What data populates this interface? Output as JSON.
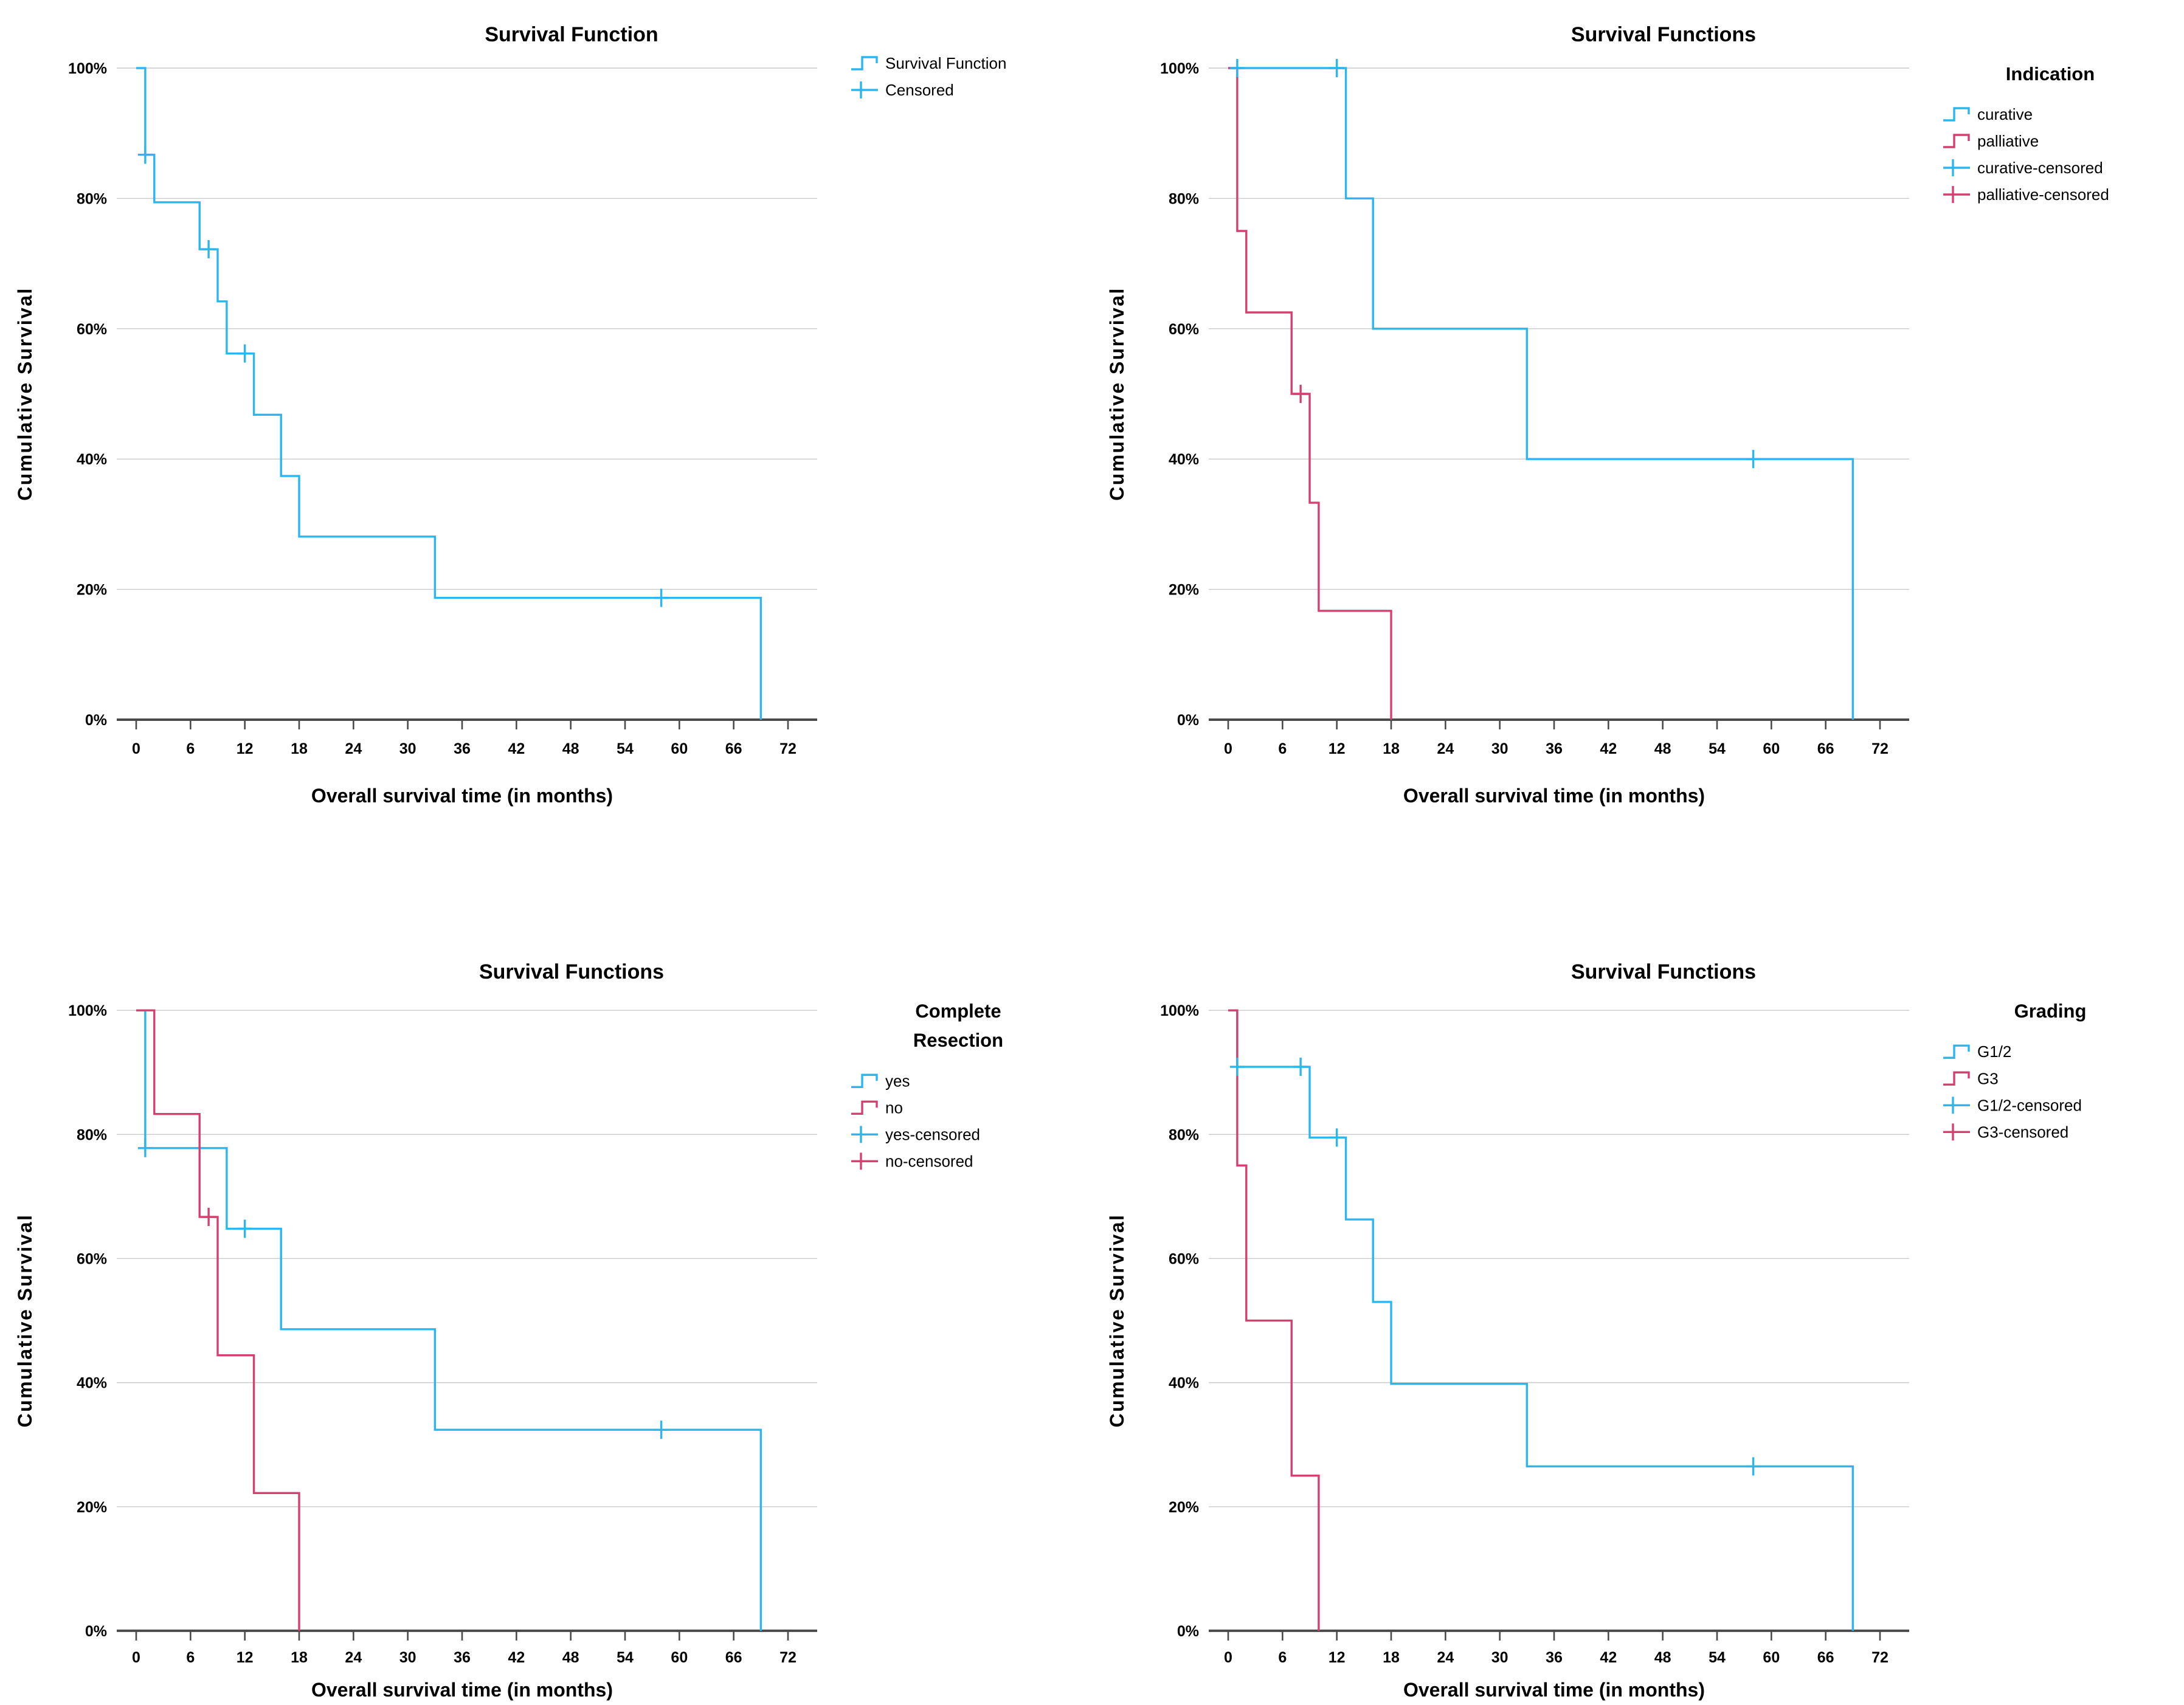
{
  "page": {
    "background": "#ffffff",
    "description": "Four SPSS-style Kaplan-Meier survival plots arranged in a 2x2 grid"
  },
  "colors": {
    "series_blue": "#2bb6ef",
    "series_pink": "#d6406e",
    "grid": "#c9c9c9",
    "axis": "#4a4a4a",
    "text": "#000000"
  },
  "chart_data": [
    {
      "type": "line",
      "subtype": "kaplan_meier_step",
      "position": "top-left",
      "layout_variant": "top",
      "title": "Survival Function",
      "xlabel": "Overall survival time (in months)",
      "ylabel": "Cumulative Survival",
      "x_range": [
        0,
        72
      ],
      "y_range": [
        0,
        100
      ],
      "x_ticks": [
        0,
        6,
        12,
        18,
        24,
        30,
        36,
        42,
        48,
        54,
        60,
        66,
        72
      ],
      "y_ticks": [
        0,
        20,
        40,
        60,
        80,
        100
      ],
      "y_tick_labels": [
        "0%",
        "20%",
        "40%",
        "60%",
        "80%",
        "100%"
      ],
      "grid": "horizontal",
      "legend_position": "right",
      "legend": {
        "title_lines": [],
        "entries": [
          {
            "label": "Survival Function",
            "glyph": "step",
            "color": "blue"
          },
          {
            "label": "Censored",
            "glyph": "plus",
            "color": "blue"
          }
        ]
      },
      "series": [
        {
          "name": "Survival Function",
          "color": "blue",
          "points": [
            [
              0,
              100
            ],
            [
              1,
              86.7
            ],
            [
              2,
              79.4
            ],
            [
              7,
              72.2
            ],
            [
              9,
              64.2
            ],
            [
              10,
              56.2
            ],
            [
              13,
              46.8
            ],
            [
              16,
              37.4
            ],
            [
              18,
              28.1
            ],
            [
              33,
              18.7
            ],
            [
              69,
              0
            ]
          ],
          "censored": [
            [
              1,
              86.7
            ],
            [
              8,
              72.2
            ],
            [
              12,
              56.2
            ],
            [
              58,
              18.7
            ]
          ]
        }
      ]
    },
    {
      "type": "line",
      "subtype": "kaplan_meier_step",
      "position": "top-right",
      "layout_variant": "top",
      "title": "Survival Functions",
      "xlabel": "Overall survival time (in months)",
      "ylabel": "Cumulative Survival",
      "x_range": [
        0,
        72
      ],
      "y_range": [
        0,
        100
      ],
      "x_ticks": [
        0,
        6,
        12,
        18,
        24,
        30,
        36,
        42,
        48,
        54,
        60,
        66,
        72
      ],
      "y_ticks": [
        0,
        20,
        40,
        60,
        80,
        100
      ],
      "y_tick_labels": [
        "0%",
        "20%",
        "40%",
        "60%",
        "80%",
        "100%"
      ],
      "grid": "horizontal",
      "legend_position": "right",
      "legend": {
        "title_lines": [
          "Indication"
        ],
        "entries": [
          {
            "label": "curative",
            "glyph": "step",
            "color": "blue"
          },
          {
            "label": "palliative",
            "glyph": "step",
            "color": "pink"
          },
          {
            "label": "curative-censored",
            "glyph": "plus",
            "color": "blue"
          },
          {
            "label": "palliative-censored",
            "glyph": "plus",
            "color": "pink"
          }
        ]
      },
      "series": [
        {
          "name": "curative",
          "color": "blue",
          "points": [
            [
              0,
              100
            ],
            [
              13,
              80
            ],
            [
              16,
              60
            ],
            [
              33,
              40
            ],
            [
              69,
              0
            ]
          ],
          "censored": [
            [
              1,
              100
            ],
            [
              12,
              100
            ],
            [
              58,
              40
            ]
          ]
        },
        {
          "name": "palliative",
          "color": "pink",
          "points": [
            [
              0,
              100
            ],
            [
              1,
              75
            ],
            [
              2,
              62.5
            ],
            [
              7,
              50
            ],
            [
              9,
              33.3
            ],
            [
              10,
              16.7
            ],
            [
              18,
              0
            ]
          ],
          "censored": [
            [
              8,
              50
            ]
          ]
        }
      ]
    },
    {
      "type": "line",
      "subtype": "kaplan_meier_step",
      "position": "bottom-left",
      "layout_variant": "bottom",
      "title": "Survival Functions",
      "xlabel": "Overall survival time (in months)",
      "ylabel": "Cumulative Survival",
      "x_range": [
        0,
        72
      ],
      "y_range": [
        0,
        100
      ],
      "x_ticks": [
        0,
        6,
        12,
        18,
        24,
        30,
        36,
        42,
        48,
        54,
        60,
        66,
        72
      ],
      "y_ticks": [
        0,
        20,
        40,
        60,
        80,
        100
      ],
      "y_tick_labels": [
        "0%",
        "20%",
        "40%",
        "60%",
        "80%",
        "100%"
      ],
      "grid": "horizontal",
      "legend_position": "right",
      "legend": {
        "title_lines": [
          "Complete",
          "Resection"
        ],
        "entries": [
          {
            "label": "yes",
            "glyph": "step",
            "color": "blue"
          },
          {
            "label": "no",
            "glyph": "step",
            "color": "pink"
          },
          {
            "label": "yes-censored",
            "glyph": "plus",
            "color": "blue"
          },
          {
            "label": "no-censored",
            "glyph": "plus",
            "color": "pink"
          }
        ]
      },
      "series": [
        {
          "name": "yes",
          "color": "blue",
          "points": [
            [
              0,
              100
            ],
            [
              1,
              77.8
            ],
            [
              10,
              64.8
            ],
            [
              16,
              48.6
            ],
            [
              33,
              32.4
            ],
            [
              69,
              0
            ]
          ],
          "censored": [
            [
              1,
              77.8
            ],
            [
              12,
              64.8
            ],
            [
              58,
              32.4
            ]
          ]
        },
        {
          "name": "no",
          "color": "pink",
          "points": [
            [
              0,
              100
            ],
            [
              2,
              83.3
            ],
            [
              7,
              66.7
            ],
            [
              9,
              44.4
            ],
            [
              13,
              22.2
            ],
            [
              18,
              0
            ]
          ],
          "censored": [
            [
              8,
              66.7
            ]
          ]
        }
      ]
    },
    {
      "type": "line",
      "subtype": "kaplan_meier_step",
      "position": "bottom-right",
      "layout_variant": "bottom",
      "title": "Survival Functions",
      "xlabel": "Overall survival time (in months)",
      "ylabel": "Cumulative Survival",
      "x_range": [
        0,
        72
      ],
      "y_range": [
        0,
        100
      ],
      "x_ticks": [
        0,
        6,
        12,
        18,
        24,
        30,
        36,
        42,
        48,
        54,
        60,
        66,
        72
      ],
      "y_ticks": [
        0,
        20,
        40,
        60,
        80,
        100
      ],
      "y_tick_labels": [
        "0%",
        "20%",
        "40%",
        "60%",
        "80%",
        "100%"
      ],
      "grid": "horizontal",
      "legend_position": "right",
      "legend": {
        "title_lines": [
          "Grading"
        ],
        "entries": [
          {
            "label": "G1/2",
            "glyph": "step",
            "color": "blue"
          },
          {
            "label": "G3",
            "glyph": "step",
            "color": "pink"
          },
          {
            "label": "G1/2-censored",
            "glyph": "plus",
            "color": "blue"
          },
          {
            "label": "G3-censored",
            "glyph": "plus",
            "color": "pink"
          }
        ]
      },
      "series": [
        {
          "name": "G1/2",
          "color": "blue",
          "points": [
            [
              0,
              100
            ],
            [
              1,
              90.9
            ],
            [
              9,
              79.5
            ],
            [
              13,
              66.3
            ],
            [
              16,
              53
            ],
            [
              18,
              39.8
            ],
            [
              33,
              26.5
            ],
            [
              69,
              0
            ]
          ],
          "censored": [
            [
              1,
              90.9
            ],
            [
              8,
              90.9
            ],
            [
              12,
              79.5
            ],
            [
              58,
              26.5
            ]
          ]
        },
        {
          "name": "G3",
          "color": "pink",
          "points": [
            [
              0,
              100
            ],
            [
              1,
              75
            ],
            [
              2,
              50
            ],
            [
              7,
              25
            ],
            [
              10,
              0
            ]
          ],
          "censored": []
        }
      ]
    }
  ]
}
